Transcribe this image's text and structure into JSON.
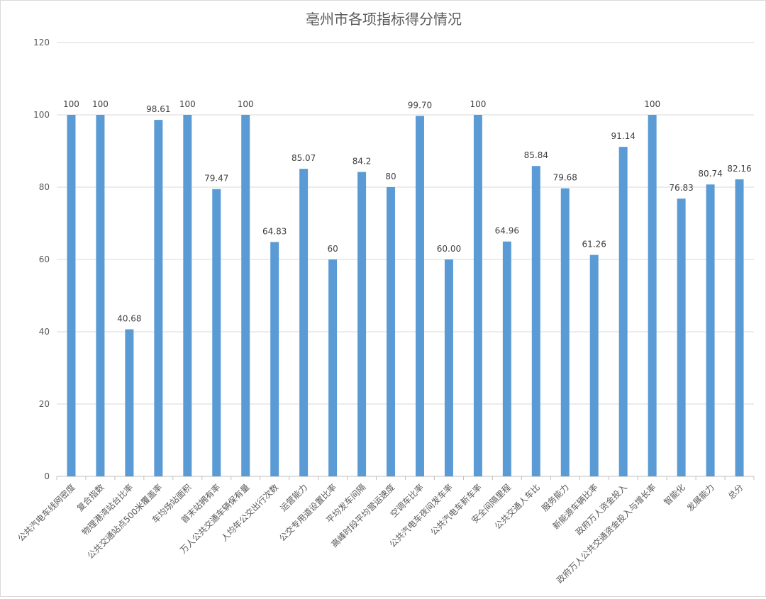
{
  "chart_data": {
    "type": "bar",
    "title": "亳州市各项指标得分情况",
    "xlabel": "",
    "ylabel": "",
    "ylim": [
      0,
      120
    ],
    "yticks": [
      0,
      20,
      40,
      60,
      80,
      100,
      120
    ],
    "grid": true,
    "legend": "none",
    "bar_color": "#5b9bd5",
    "categories": [
      "公共汽电车线网密度",
      "复合指数",
      "物理港湾站台比率",
      "公共交通站点500米覆盖率",
      "车均场站面积",
      "首末站拥有率",
      "万人公共交通车辆保有量",
      "人均年公交出行次数",
      "运营能力",
      "公交专用道设置比率",
      "平均发车间隔",
      "高峰时段平均营运速度",
      "空调车比率",
      "公共汽电车夜间发车率",
      "公共汽电车新车率",
      "安全间隔里程",
      "公共交通人车比",
      "服务能力",
      "新能源车辆比率",
      "政府万人资金投入",
      "政府万人公共交通资金投入与增长率",
      "智能化",
      "发展能力",
      "总分"
    ],
    "values": [
      100,
      100,
      40.68,
      98.61,
      100,
      79.47,
      100,
      64.83,
      85.07,
      60,
      84.2,
      80,
      99.7,
      60.0,
      100,
      64.96,
      85.84,
      79.68,
      61.26,
      91.14,
      100,
      76.83,
      80.74,
      82.16
    ],
    "data_labels": [
      "100",
      "100",
      "40.68",
      "98.61",
      "100",
      "79.47",
      "100",
      "64.83",
      "85.07",
      "60",
      "84.2",
      "80",
      "99.70",
      "60.00",
      "100",
      "64.96",
      "85.84",
      "79.68",
      "61.26",
      "91.14",
      "100",
      "76.83",
      "80.74",
      "82.16"
    ]
  }
}
